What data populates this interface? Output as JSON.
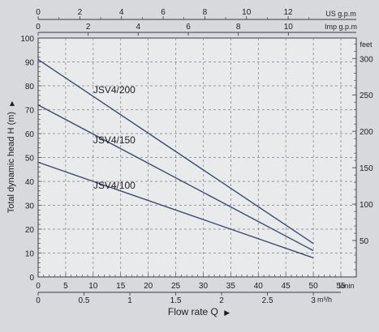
{
  "chart_data": {
    "type": "line",
    "title": "",
    "xlabel": "Flow rate Q",
    "x_unit_lmin": "l/min",
    "x_unit_m3h": "m³/h",
    "x_unit_usgpm": "US g.p.m",
    "x_unit_impgpm": "Imp g.p.m",
    "ylabel": "Total dynamic head H (m)",
    "y_unit_feet": "feet",
    "xlim": [
      0,
      55
    ],
    "ylim": [
      0,
      100
    ],
    "grid": true,
    "x_ticks_lmin": [
      "0",
      "5",
      "10",
      "15",
      "20",
      "25",
      "30",
      "35",
      "40",
      "45",
      "50",
      "55"
    ],
    "x_ticks_m3h": [
      "0",
      "0.5",
      "1",
      "1.5",
      "2",
      "2.5",
      "3"
    ],
    "x_ticks_usgpm": [
      "0",
      "2",
      "4",
      "6",
      "8",
      "10",
      "12"
    ],
    "x_ticks_impgpm": [
      "0",
      "2",
      "4",
      "6",
      "8",
      "10"
    ],
    "y_ticks_m": [
      "0",
      "10",
      "20",
      "30",
      "40",
      "50",
      "60",
      "70",
      "80",
      "90",
      "100"
    ],
    "y_ticks_feet": [
      "50",
      "100",
      "150",
      "200",
      "250",
      "300"
    ],
    "series": [
      {
        "name": "JSV4/200",
        "x": [
          0,
          50
        ],
        "y": [
          91,
          14
        ],
        "label_at": [
          10,
          77
        ],
        "color": "#3a4a6a"
      },
      {
        "name": "JSV4/150",
        "x": [
          0,
          50
        ],
        "y": [
          72,
          11
        ],
        "label_at": [
          10,
          56
        ],
        "color": "#3a4a6a"
      },
      {
        "name": "JSV4/100",
        "x": [
          0,
          50
        ],
        "y": [
          48,
          8
        ],
        "label_at": [
          10,
          37
        ],
        "color": "#3a4a6a"
      }
    ]
  }
}
